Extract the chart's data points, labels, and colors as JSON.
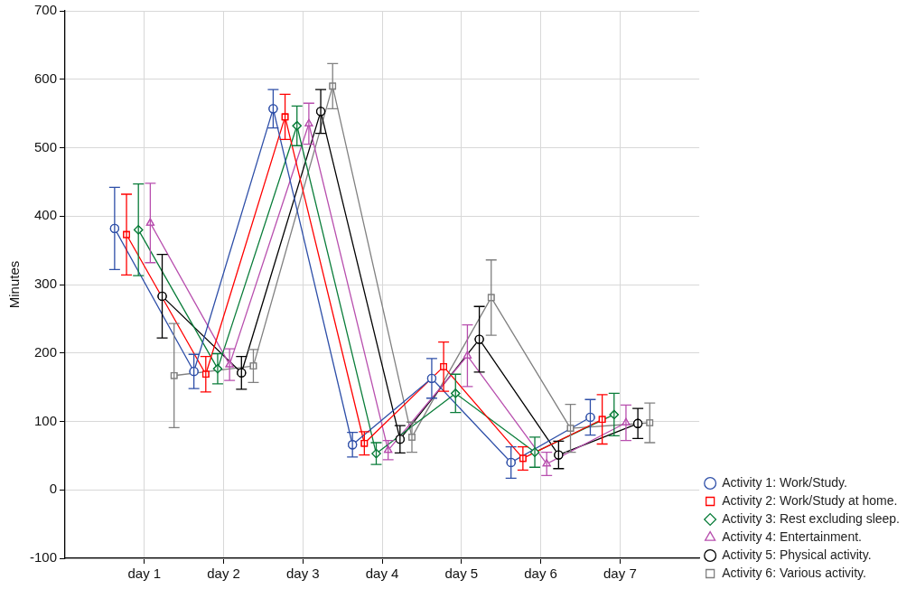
{
  "chart_data": {
    "type": "line",
    "ylabel": "Minutes",
    "categories": [
      "day 1",
      "day 2",
      "day 3",
      "day 4",
      "day 5",
      "day 6",
      "day 7"
    ],
    "ylim": [
      -100,
      700
    ],
    "yticks": [
      -100,
      0,
      100,
      200,
      300,
      400,
      500,
      600,
      700
    ],
    "grid": true,
    "legend": "bottom right",
    "line_style": "solid",
    "series": [
      {
        "name": "Activity 1: Work/Study.",
        "color": "#2e4fa8",
        "marker": "circle",
        "values": [
          382,
          173,
          557,
          66,
          163,
          40,
          106
        ],
        "errors": [
          60,
          25,
          28,
          18,
          29,
          23,
          26
        ]
      },
      {
        "name": "Activity 2: Work/Study at home.",
        "color": "#ff0000",
        "marker": "square",
        "values": [
          373,
          169,
          545,
          68,
          180,
          46,
          103
        ],
        "errors": [
          59,
          26,
          33,
          17,
          36,
          17,
          36
        ]
      },
      {
        "name": "Activity 3: Rest excluding sleep.",
        "color": "#0a7d3a",
        "marker": "diamond",
        "values": [
          380,
          177,
          532,
          53,
          141,
          55,
          110
        ],
        "errors": [
          67,
          22,
          29,
          16,
          28,
          22,
          31
        ]
      },
      {
        "name": "Activity 4: Entertainment.",
        "color": "#b84fae",
        "marker": "triangle",
        "values": [
          390,
          183,
          535,
          58,
          196,
          38,
          98
        ],
        "errors": [
          58,
          23,
          30,
          14,
          45,
          17,
          26
        ]
      },
      {
        "name": "Activity 5: Physical activity.",
        "color": "#000000",
        "marker": "circle",
        "values": [
          283,
          171,
          553,
          74,
          220,
          51,
          97
        ],
        "errors": [
          61,
          24,
          32,
          20,
          48,
          20,
          22
        ]
      },
      {
        "name": "Activity 6: Various activity.",
        "color": "#808080",
        "marker": "square",
        "values": [
          167,
          181,
          590,
          77,
          281,
          90,
          98
        ],
        "errors": [
          76,
          24,
          33,
          22,
          55,
          35,
          29
        ]
      }
    ]
  }
}
